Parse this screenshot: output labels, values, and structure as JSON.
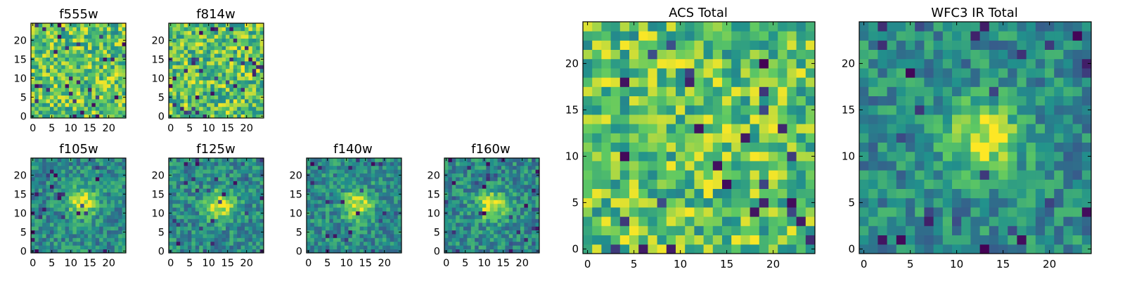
{
  "chart_data": [
    {
      "type": "heatmap",
      "title": "f555w",
      "xlim": [
        0,
        24
      ],
      "ylim": [
        0,
        24
      ],
      "xticks": [
        "0",
        "5",
        "10",
        "15",
        "20"
      ],
      "yticks": [
        "0",
        "5",
        "10",
        "15",
        "20"
      ],
      "pattern": "noise",
      "seed": 11,
      "colormap": "viridis"
    },
    {
      "type": "heatmap",
      "title": "f814w",
      "xlim": [
        0,
        24
      ],
      "ylim": [
        0,
        24
      ],
      "xticks": [
        "0",
        "5",
        "10",
        "15",
        "20"
      ],
      "yticks": [
        "0",
        "5",
        "10",
        "15",
        "20"
      ],
      "pattern": "noise",
      "seed": 23,
      "colormap": "viridis"
    },
    {
      "type": "heatmap",
      "title": "f105w",
      "xlim": [
        0,
        24
      ],
      "ylim": [
        0,
        24
      ],
      "xticks": [
        "0",
        "5",
        "10",
        "15",
        "20"
      ],
      "yticks": [
        "0",
        "5",
        "10",
        "15",
        "20"
      ],
      "pattern": "source",
      "source_center": [
        13,
        13
      ],
      "seed": 37,
      "colormap": "viridis"
    },
    {
      "type": "heatmap",
      "title": "f125w",
      "xlim": [
        0,
        24
      ],
      "ylim": [
        0,
        24
      ],
      "xticks": [
        "0",
        "5",
        "10",
        "15",
        "20"
      ],
      "yticks": [
        "0",
        "5",
        "10",
        "15",
        "20"
      ],
      "pattern": "source",
      "source_center": [
        13,
        12
      ],
      "seed": 41,
      "colormap": "viridis"
    },
    {
      "type": "heatmap",
      "title": "f140w",
      "xlim": [
        0,
        24
      ],
      "ylim": [
        0,
        24
      ],
      "xticks": [
        "0",
        "5",
        "10",
        "15",
        "20"
      ],
      "yticks": [
        "0",
        "5",
        "10",
        "15",
        "20"
      ],
      "pattern": "source",
      "source_center": [
        13,
        12
      ],
      "seed": 53,
      "colormap": "viridis"
    },
    {
      "type": "heatmap",
      "title": "f160w",
      "xlim": [
        0,
        24
      ],
      "ylim": [
        0,
        24
      ],
      "xticks": [
        "0",
        "5",
        "10",
        "15",
        "20"
      ],
      "yticks": [
        "0",
        "5",
        "10",
        "15",
        "20"
      ],
      "pattern": "source",
      "source_center": [
        12,
        12
      ],
      "seed": 67,
      "colormap": "viridis"
    },
    {
      "type": "heatmap",
      "title": "ACS Total",
      "xlim": [
        0,
        24
      ],
      "ylim": [
        0,
        24
      ],
      "xticks": [
        "0",
        "5",
        "10",
        "15",
        "20"
      ],
      "yticks": [
        "0",
        "5",
        "10",
        "15",
        "20"
      ],
      "pattern": "noise",
      "seed": 79,
      "colormap": "viridis"
    },
    {
      "type": "heatmap",
      "title": "WFC3 IR Total",
      "xlim": [
        0,
        24
      ],
      "ylim": [
        0,
        24
      ],
      "xticks": [
        "0",
        "5",
        "10",
        "15",
        "20"
      ],
      "yticks": [
        "0",
        "5",
        "10",
        "15",
        "20"
      ],
      "pattern": "source",
      "source_center": [
        13,
        12
      ],
      "seed": 97,
      "colormap": "viridis"
    }
  ],
  "colors": {
    "cmap_stops": [
      "#440154",
      "#3b528b",
      "#21918c",
      "#5ec962",
      "#fde725"
    ],
    "axis": "#000000"
  }
}
